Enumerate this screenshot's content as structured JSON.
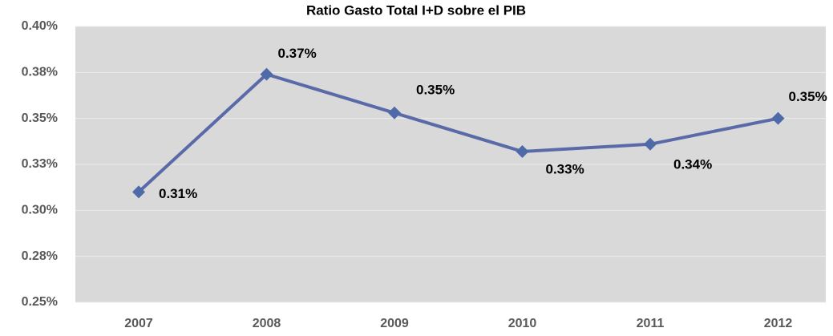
{
  "chart_data": {
    "type": "line",
    "title": "Ratio Gasto Total I+D sobre el PIB",
    "categories": [
      "2007",
      "2008",
      "2009",
      "2010",
      "2011",
      "2012"
    ],
    "series": [
      {
        "color": "#5a6aa8",
        "marker_color": "#4e6aa9",
        "values": [
          0.31,
          0.374,
          0.353,
          0.332,
          0.336,
          0.35
        ],
        "value_labels": [
          "0.31%",
          "0.37%",
          "0.35%",
          "0.33%",
          "0.34%",
          "0.35%"
        ]
      }
    ],
    "ylim": [
      0.25,
      0.4
    ],
    "yticks": [
      {
        "value": 0.25,
        "label": "0.25%"
      },
      {
        "value": 0.275,
        "label": "0.28%"
      },
      {
        "value": 0.3,
        "label": "0.30%"
      },
      {
        "value": 0.325,
        "label": "0.33%"
      },
      {
        "value": 0.35,
        "label": "0.35%"
      },
      {
        "value": 0.375,
        "label": "0.38%"
      },
      {
        "value": 0.4,
        "label": "0.40%"
      }
    ],
    "grid": true
  }
}
